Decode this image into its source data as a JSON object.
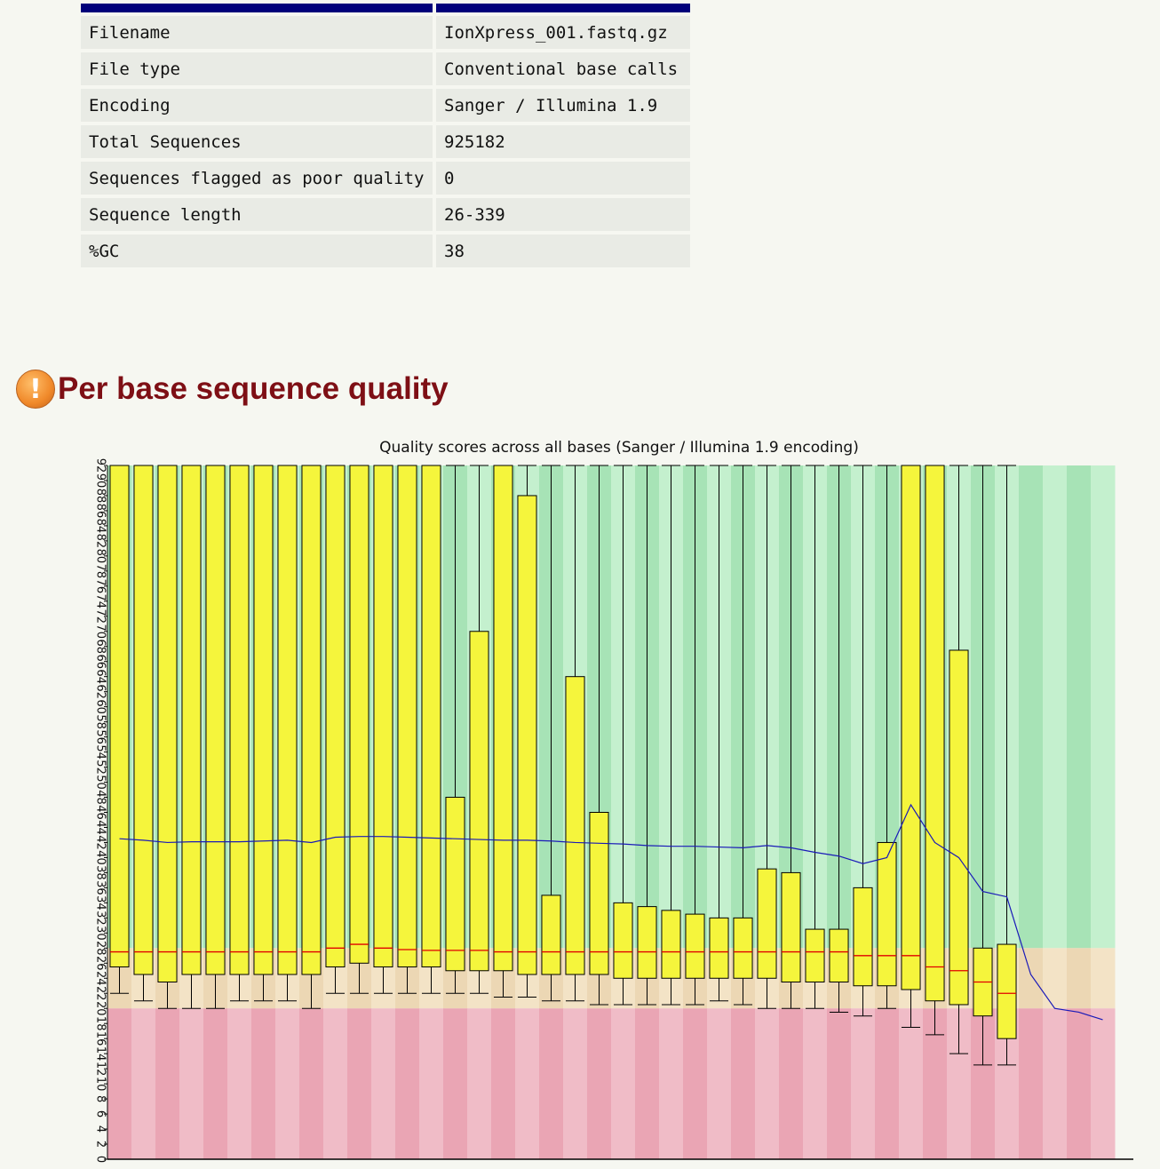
{
  "summary": {
    "rows": [
      {
        "key": "Filename",
        "value": "IonXpress_001.fastq.gz"
      },
      {
        "key": "File type",
        "value": "Conventional base calls"
      },
      {
        "key": "Encoding",
        "value": "Sanger / Illumina 1.9"
      },
      {
        "key": "Total Sequences",
        "value": "925182"
      },
      {
        "key": "Sequences flagged as poor quality",
        "value": "0"
      },
      {
        "key": "Sequence length",
        "value": "26-339"
      },
      {
        "key": "%GC",
        "value": "38"
      }
    ]
  },
  "section": {
    "icon": "warning-icon",
    "title": "Per base sequence quality"
  },
  "colors": {
    "header_bar": "#00007a",
    "title": "#7e0f15",
    "box_fill": "#f5f53c",
    "median": "#e00000",
    "mean_line": "#1a1ab8",
    "good_a": "#a7e3b6",
    "good_b": "#c4f0ce",
    "warn_a": "#ecd7b4",
    "warn_b": "#f3e3c6",
    "poor_a": "#eaa5b4",
    "poor_b": "#f0bcc7"
  },
  "chart_data": {
    "type": "box",
    "title": "Quality scores across all bases (Sanger / Illumina 1.9 encoding)",
    "xlabel": "",
    "ylabel": "",
    "ylim": [
      0,
      92
    ],
    "yticks": [
      0,
      2,
      4,
      6,
      8,
      10,
      12,
      14,
      16,
      18,
      20,
      22,
      24,
      26,
      28,
      30,
      32,
      34,
      36,
      38,
      40,
      42,
      44,
      46,
      48,
      50,
      52,
      54,
      56,
      58,
      60,
      62,
      64,
      66,
      68,
      70,
      72,
      74,
      76,
      78,
      80,
      82,
      84,
      86,
      88,
      90,
      92
    ],
    "bands": {
      "poor": [
        0,
        20
      ],
      "warning": [
        20,
        28
      ],
      "good": [
        28,
        92
      ]
    },
    "n_positions": 42,
    "boxes": [
      {
        "pos": 1,
        "whisker_low": 22,
        "q1": 25.5,
        "median": 27.5,
        "q3": 92,
        "whisker_high": 92
      },
      {
        "pos": 2,
        "whisker_low": 21,
        "q1": 24.5,
        "median": 27.5,
        "q3": 92,
        "whisker_high": 92
      },
      {
        "pos": 3,
        "whisker_low": 20,
        "q1": 23.5,
        "median": 27.5,
        "q3": 92,
        "whisker_high": 92
      },
      {
        "pos": 4,
        "whisker_low": 20,
        "q1": 24.5,
        "median": 27.5,
        "q3": 92,
        "whisker_high": 92
      },
      {
        "pos": 5,
        "whisker_low": 20,
        "q1": 24.5,
        "median": 27.5,
        "q3": 92,
        "whisker_high": 92
      },
      {
        "pos": 6,
        "whisker_low": 21,
        "q1": 24.5,
        "median": 27.5,
        "q3": 92,
        "whisker_high": 92
      },
      {
        "pos": 7,
        "whisker_low": 21,
        "q1": 24.5,
        "median": 27.5,
        "q3": 92,
        "whisker_high": 92
      },
      {
        "pos": 8,
        "whisker_low": 21,
        "q1": 24.5,
        "median": 27.5,
        "q3": 92,
        "whisker_high": 92
      },
      {
        "pos": 9,
        "whisker_low": 20,
        "q1": 24.5,
        "median": 27.5,
        "q3": 92,
        "whisker_high": 92
      },
      {
        "pos": 10,
        "whisker_low": 22,
        "q1": 25.5,
        "median": 28,
        "q3": 92,
        "whisker_high": 92
      },
      {
        "pos": 11,
        "whisker_low": 22,
        "q1": 26,
        "median": 28.5,
        "q3": 92,
        "whisker_high": 92
      },
      {
        "pos": 12,
        "whisker_low": 22,
        "q1": 25.5,
        "median": 28,
        "q3": 92,
        "whisker_high": 92
      },
      {
        "pos": 13,
        "whisker_low": 22,
        "q1": 25.5,
        "median": 27.8,
        "q3": 92,
        "whisker_high": 92
      },
      {
        "pos": 14,
        "whisker_low": 22,
        "q1": 25.5,
        "median": 27.7,
        "q3": 92,
        "whisker_high": 92
      },
      {
        "pos": 15,
        "whisker_low": 22,
        "q1": 25,
        "median": 27.7,
        "q3": 48,
        "whisker_high": 92
      },
      {
        "pos": 16,
        "whisker_low": 22,
        "q1": 25,
        "median": 27.7,
        "q3": 70,
        "whisker_high": 92
      },
      {
        "pos": 17,
        "whisker_low": 21.5,
        "q1": 25,
        "median": 27.5,
        "q3": 92,
        "whisker_high": 92
      },
      {
        "pos": 18,
        "whisker_low": 21.5,
        "q1": 24.5,
        "median": 27.5,
        "q3": 88,
        "whisker_high": 92
      },
      {
        "pos": 19,
        "whisker_low": 21,
        "q1": 24.5,
        "median": 27.5,
        "q3": 35,
        "whisker_high": 92
      },
      {
        "pos": 20,
        "whisker_low": 21,
        "q1": 24.5,
        "median": 27.5,
        "q3": 64,
        "whisker_high": 92
      },
      {
        "pos": 21,
        "whisker_low": 20.5,
        "q1": 24.5,
        "median": 27.5,
        "q3": 46,
        "whisker_high": 92
      },
      {
        "pos": 22,
        "whisker_low": 20.5,
        "q1": 24,
        "median": 27.5,
        "q3": 34,
        "whisker_high": 92
      },
      {
        "pos": 23,
        "whisker_low": 20.5,
        "q1": 24,
        "median": 27.5,
        "q3": 33.5,
        "whisker_high": 92
      },
      {
        "pos": 24,
        "whisker_low": 20.5,
        "q1": 24,
        "median": 27.5,
        "q3": 33,
        "whisker_high": 92
      },
      {
        "pos": 25,
        "whisker_low": 20.5,
        "q1": 24,
        "median": 27.5,
        "q3": 32.5,
        "whisker_high": 92
      },
      {
        "pos": 26,
        "whisker_low": 21,
        "q1": 24,
        "median": 27.5,
        "q3": 32,
        "whisker_high": 92
      },
      {
        "pos": 27,
        "whisker_low": 20.5,
        "q1": 24,
        "median": 27.5,
        "q3": 32,
        "whisker_high": 92
      },
      {
        "pos": 28,
        "whisker_low": 20,
        "q1": 24,
        "median": 27.5,
        "q3": 38.5,
        "whisker_high": 92
      },
      {
        "pos": 29,
        "whisker_low": 20,
        "q1": 23.5,
        "median": 27.5,
        "q3": 38,
        "whisker_high": 92
      },
      {
        "pos": 30,
        "whisker_low": 20,
        "q1": 23.5,
        "median": 27.5,
        "q3": 30.5,
        "whisker_high": 92
      },
      {
        "pos": 31,
        "whisker_low": 19.5,
        "q1": 23.5,
        "median": 27.5,
        "q3": 30.5,
        "whisker_high": 92
      },
      {
        "pos": 32,
        "whisker_low": 19,
        "q1": 23,
        "median": 27,
        "q3": 36,
        "whisker_high": 92
      },
      {
        "pos": 33,
        "whisker_low": 20,
        "q1": 23,
        "median": 27,
        "q3": 42,
        "whisker_high": 92
      },
      {
        "pos": 34,
        "whisker_low": 17.5,
        "q1": 22.5,
        "median": 27,
        "q3": 92,
        "whisker_high": 92
      },
      {
        "pos": 35,
        "whisker_low": 16.5,
        "q1": 21,
        "median": 25.5,
        "q3": 92,
        "whisker_high": 92
      },
      {
        "pos": 36,
        "whisker_low": 14,
        "q1": 20.5,
        "median": 25,
        "q3": 67.5,
        "whisker_high": 92
      },
      {
        "pos": 37,
        "whisker_low": 12.5,
        "q1": 19,
        "median": 23.5,
        "q3": 28,
        "whisker_high": 92
      },
      {
        "pos": 38,
        "whisker_low": 12.5,
        "q1": 16,
        "median": 22,
        "q3": 28.5,
        "whisker_high": 92
      }
    ],
    "series": [
      {
        "values": [
          [
            1,
            42.5
          ],
          [
            2,
            42.3
          ],
          [
            3,
            42
          ],
          [
            4,
            42.1
          ],
          [
            5,
            42.1
          ],
          [
            6,
            42.1
          ],
          [
            7,
            42.2
          ],
          [
            8,
            42.3
          ],
          [
            9,
            42
          ],
          [
            10,
            42.7
          ],
          [
            11,
            42.8
          ],
          [
            12,
            42.8
          ],
          [
            13,
            42.7
          ],
          [
            14,
            42.6
          ],
          [
            15,
            42.5
          ],
          [
            16,
            42.4
          ],
          [
            17,
            42.3
          ],
          [
            18,
            42.3
          ],
          [
            19,
            42.2
          ],
          [
            20,
            42
          ],
          [
            21,
            41.9
          ],
          [
            22,
            41.8
          ],
          [
            23,
            41.6
          ],
          [
            24,
            41.5
          ],
          [
            25,
            41.5
          ],
          [
            26,
            41.4
          ],
          [
            27,
            41.3
          ],
          [
            28,
            41.6
          ],
          [
            29,
            41.3
          ],
          [
            30,
            40.7
          ],
          [
            31,
            40.2
          ],
          [
            32,
            39.2
          ],
          [
            33,
            40
          ],
          [
            34,
            47
          ],
          [
            35,
            42
          ],
          [
            36,
            40
          ],
          [
            37,
            35.5
          ],
          [
            38,
            34.8
          ],
          [
            39,
            24.5
          ],
          [
            40,
            20
          ],
          [
            41,
            19.5
          ],
          [
            42,
            18.5
          ]
        ]
      }
    ]
  }
}
